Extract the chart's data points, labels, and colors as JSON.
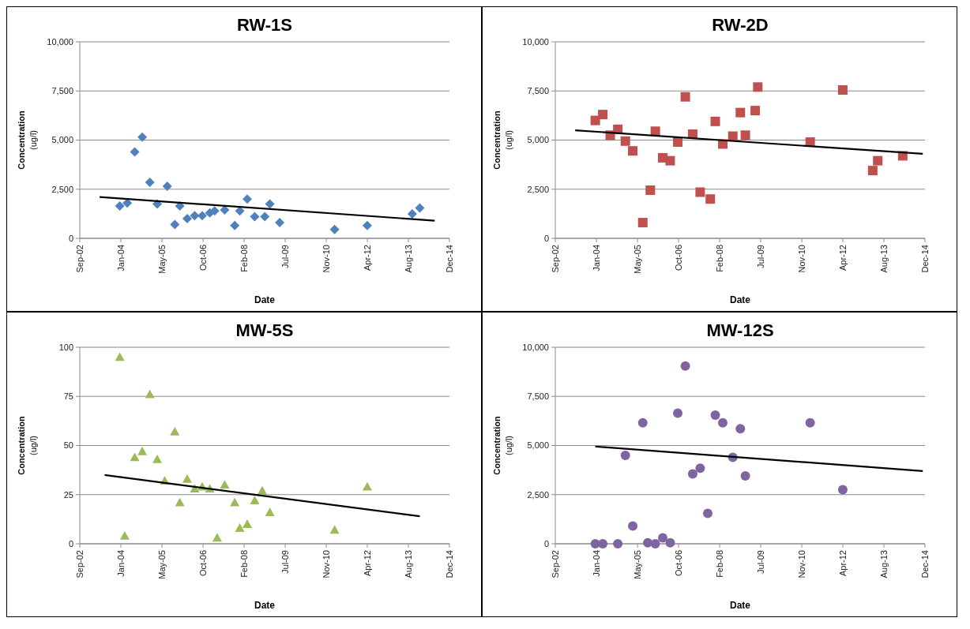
{
  "chart_data": [
    {
      "type": "scatter",
      "title": "RW-1S",
      "xlabel": "Date",
      "ylabel": "Concentration (ug/l)",
      "xlim": [
        "2002-09-01",
        "2014-12-28"
      ],
      "xticks": [
        {
          "value": "2002-09-01",
          "label": "Sep-02"
        },
        {
          "value": "2004-01-14",
          "label": "Jan-04"
        },
        {
          "value": "2005-05-29",
          "label": "May-05"
        },
        {
          "value": "2006-10-11",
          "label": "Oct-06"
        },
        {
          "value": "2008-02-23",
          "label": "Feb-08"
        },
        {
          "value": "2009-07-07",
          "label": "Jul-09"
        },
        {
          "value": "2010-11-19",
          "label": "Nov-10"
        },
        {
          "value": "2012-04-02",
          "label": "Apr-12"
        },
        {
          "value": "2013-08-15",
          "label": "Aug-13"
        },
        {
          "value": "2014-12-28",
          "label": "Dec-14"
        }
      ],
      "ylim": [
        0,
        10000
      ],
      "yticks": [
        {
          "value": 0,
          "label": "0"
        },
        {
          "value": 2500,
          "label": "2,500"
        },
        {
          "value": 5000,
          "label": "5,000"
        },
        {
          "value": 7500,
          "label": "7,500"
        },
        {
          "value": 10000,
          "label": "10,000"
        }
      ],
      "grid": "y",
      "series": [
        {
          "type": "scatter",
          "marker": "diamond",
          "color": "#4f81bd",
          "x": [
            "2004-01",
            "2004-04",
            "2004-07",
            "2004-10",
            "2005-01",
            "2005-04",
            "2005-08",
            "2005-11",
            "2006-01",
            "2006-04",
            "2006-07",
            "2006-10",
            "2007-01",
            "2007-03",
            "2007-07",
            "2007-11",
            "2008-01",
            "2008-04",
            "2008-07",
            "2008-11",
            "2009-01",
            "2009-05",
            "2011-03",
            "2012-04",
            "2013-10",
            "2014-01"
          ],
          "values": [
            1650,
            1800,
            4400,
            5150,
            2850,
            1750,
            2650,
            700,
            1650,
            1000,
            1150,
            1150,
            1300,
            1400,
            1450,
            650,
            1400,
            2000,
            1100,
            1100,
            1750,
            800,
            450,
            650,
            1250,
            1550
          ]
        },
        {
          "type": "line",
          "color": "#000000",
          "x": [
            "2003-05",
            "2014-07"
          ],
          "values": [
            2100,
            900
          ]
        }
      ]
    },
    {
      "type": "scatter",
      "title": "RW-2D",
      "xlabel": "Date",
      "ylabel": "Concentration (ug/l)",
      "xlim": [
        "2002-09-01",
        "2014-12-28"
      ],
      "xticks": [
        {
          "value": "2002-09-01",
          "label": "Sep-02"
        },
        {
          "value": "2004-01-14",
          "label": "Jan-04"
        },
        {
          "value": "2005-05-29",
          "label": "May-05"
        },
        {
          "value": "2006-10-11",
          "label": "Oct-06"
        },
        {
          "value": "2008-02-23",
          "label": "Feb-08"
        },
        {
          "value": "2009-07-07",
          "label": "Jul-09"
        },
        {
          "value": "2010-11-19",
          "label": "Nov-10"
        },
        {
          "value": "2012-04-02",
          "label": "Apr-12"
        },
        {
          "value": "2013-08-15",
          "label": "Aug-13"
        },
        {
          "value": "2014-12-28",
          "label": "Dec-14"
        }
      ],
      "ylim": [
        0,
        10000
      ],
      "yticks": [
        {
          "value": 0,
          "label": "0"
        },
        {
          "value": 2500,
          "label": "2,500"
        },
        {
          "value": 5000,
          "label": "5,000"
        },
        {
          "value": 7500,
          "label": "7,500"
        },
        {
          "value": 10000,
          "label": "10,000"
        }
      ],
      "grid": "y",
      "series": [
        {
          "type": "scatter",
          "marker": "square",
          "color": "#c0504d",
          "x": [
            "2004-01",
            "2004-04",
            "2004-07",
            "2004-10",
            "2005-01",
            "2005-04",
            "2005-08",
            "2005-11",
            "2006-01",
            "2006-04",
            "2006-07",
            "2006-10",
            "2007-01",
            "2007-04",
            "2007-07",
            "2007-11",
            "2008-01",
            "2008-04",
            "2008-08",
            "2008-11",
            "2009-01",
            "2009-05",
            "2009-06",
            "2011-03",
            "2012-04",
            "2013-04",
            "2013-06",
            "2014-04"
          ],
          "values": [
            6000,
            6300,
            5250,
            5550,
            4950,
            4450,
            800,
            2450,
            5450,
            4100,
            3950,
            4900,
            7200,
            5300,
            2350,
            2000,
            5950,
            4800,
            5200,
            6400,
            5250,
            6500,
            7700,
            4900,
            7550,
            3450,
            3950,
            4200
          ]
        },
        {
          "type": "line",
          "color": "#000000",
          "x": [
            "2003-05",
            "2014-12"
          ],
          "values": [
            5500,
            4300
          ]
        }
      ]
    },
    {
      "type": "scatter",
      "title": "MW-5S",
      "xlabel": "Date",
      "ylabel": "Concentration (ug/l)",
      "xlim": [
        "2002-09-01",
        "2014-12-28"
      ],
      "xticks": [
        {
          "value": "2002-09-01",
          "label": "Sep-02"
        },
        {
          "value": "2004-01-14",
          "label": "Jan-04"
        },
        {
          "value": "2005-05-29",
          "label": "May-05"
        },
        {
          "value": "2006-10-11",
          "label": "Oct-06"
        },
        {
          "value": "2008-02-23",
          "label": "Feb-08"
        },
        {
          "value": "2009-07-07",
          "label": "Jul-09"
        },
        {
          "value": "2010-11-19",
          "label": "Nov-10"
        },
        {
          "value": "2012-04-02",
          "label": "Apr-12"
        },
        {
          "value": "2013-08-15",
          "label": "Aug-13"
        },
        {
          "value": "2014-12-28",
          "label": "Dec-14"
        }
      ],
      "ylim": [
        0,
        100
      ],
      "yticks": [
        0,
        25,
        50,
        75,
        100
      ],
      "grid": "y",
      "series": [
        {
          "type": "scatter",
          "marker": "triangle",
          "color": "#9bbb59",
          "x": [
            "2004-01",
            "2004-03",
            "2004-07",
            "2004-10",
            "2005-01",
            "2005-04",
            "2005-07",
            "2005-11",
            "2006-01",
            "2006-04",
            "2006-07",
            "2006-10",
            "2007-01",
            "2007-04",
            "2007-07",
            "2007-11",
            "2008-01",
            "2008-04",
            "2008-07",
            "2008-10",
            "2009-01",
            "2011-03",
            "2012-04"
          ],
          "values": [
            95,
            4,
            44,
            47,
            76,
            43,
            32,
            57,
            21,
            33,
            28,
            29,
            28,
            3,
            30,
            21,
            8,
            10,
            22,
            27,
            16,
            7,
            29
          ]
        },
        {
          "type": "line",
          "color": "#000000",
          "x": [
            "2003-07",
            "2014-01"
          ],
          "values": [
            35,
            14
          ]
        }
      ]
    },
    {
      "type": "scatter",
      "title": "MW-12S",
      "xlabel": "Date",
      "ylabel": "Concentration (ug/l)",
      "xlim": [
        "2002-09-01",
        "2014-12-28"
      ],
      "xticks": [
        {
          "value": "2002-09-01",
          "label": "Sep-02"
        },
        {
          "value": "2004-01-14",
          "label": "Jan-04"
        },
        {
          "value": "2005-05-29",
          "label": "May-05"
        },
        {
          "value": "2006-10-11",
          "label": "Oct-06"
        },
        {
          "value": "2008-02-23",
          "label": "Feb-08"
        },
        {
          "value": "2009-07-07",
          "label": "Jul-09"
        },
        {
          "value": "2010-11-19",
          "label": "Nov-10"
        },
        {
          "value": "2012-04-02",
          "label": "Apr-12"
        },
        {
          "value": "2013-08-15",
          "label": "Aug-13"
        },
        {
          "value": "2014-12-28",
          "label": "Dec-14"
        }
      ],
      "ylim": [
        0,
        10000
      ],
      "yticks": [
        {
          "value": 0,
          "label": "0"
        },
        {
          "value": 2500,
          "label": "2,500"
        },
        {
          "value": 5000,
          "label": "5,000"
        },
        {
          "value": 7500,
          "label": "7,500"
        },
        {
          "value": 10000,
          "label": "10,000"
        }
      ],
      "grid": "y",
      "series": [
        {
          "type": "scatter",
          "marker": "circle",
          "color": "#8064a2",
          "x": [
            "2004-01",
            "2004-04",
            "2004-10",
            "2005-01",
            "2005-04",
            "2005-08",
            "2005-10",
            "2006-01",
            "2006-04",
            "2006-07",
            "2006-10",
            "2007-01",
            "2007-04",
            "2007-07",
            "2007-10",
            "2008-01",
            "2008-04",
            "2008-08",
            "2008-11",
            "2009-01",
            "2011-03",
            "2012-04"
          ],
          "values": [
            0,
            0,
            0,
            4500,
            900,
            6150,
            50,
            0,
            300,
            50,
            6650,
            9050,
            3550,
            3850,
            1550,
            6550,
            6150,
            4400,
            5850,
            3450,
            6150,
            2750
          ]
        },
        {
          "type": "line",
          "color": "#000000",
          "x": [
            "2004-01",
            "2014-12"
          ],
          "values": [
            4950,
            3700
          ]
        }
      ]
    }
  ]
}
